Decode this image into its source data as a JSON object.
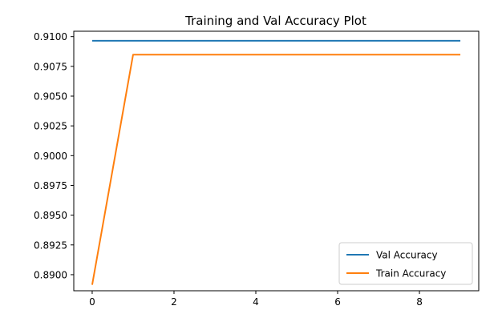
{
  "chart_data": {
    "type": "line",
    "title": "Training and Val Accuracy Plot",
    "xlabel": "",
    "ylabel": "",
    "x": [
      0,
      1,
      2,
      3,
      4,
      5,
      6,
      7,
      8,
      9
    ],
    "xlim": [
      -0.45,
      9.45
    ],
    "ylim": [
      0.88865,
      0.91045
    ],
    "xticks": [
      0,
      2,
      4,
      6,
      8
    ],
    "xtick_labels": [
      "0",
      "2",
      "4",
      "6",
      "8"
    ],
    "yticks": [
      0.89,
      0.8925,
      0.895,
      0.8975,
      0.9,
      0.9025,
      0.905,
      0.9075,
      0.91
    ],
    "ytick_labels": [
      "0.8900",
      "0.8925",
      "0.8950",
      "0.8975",
      "0.9000",
      "0.9025",
      "0.9050",
      "0.9075",
      "0.9100"
    ],
    "grid": false,
    "legend_position": "lower right",
    "series": [
      {
        "name": "Val Accuracy",
        "color": "#1f77b4",
        "values": [
          0.90965,
          0.90965,
          0.90965,
          0.90965,
          0.90965,
          0.90965,
          0.90965,
          0.90965,
          0.90965,
          0.90965
        ]
      },
      {
        "name": "Train Accuracy",
        "color": "#ff7f0e",
        "values": [
          0.88915,
          0.90848,
          0.90848,
          0.90848,
          0.90848,
          0.90848,
          0.90848,
          0.90848,
          0.90848,
          0.90848
        ]
      }
    ]
  }
}
